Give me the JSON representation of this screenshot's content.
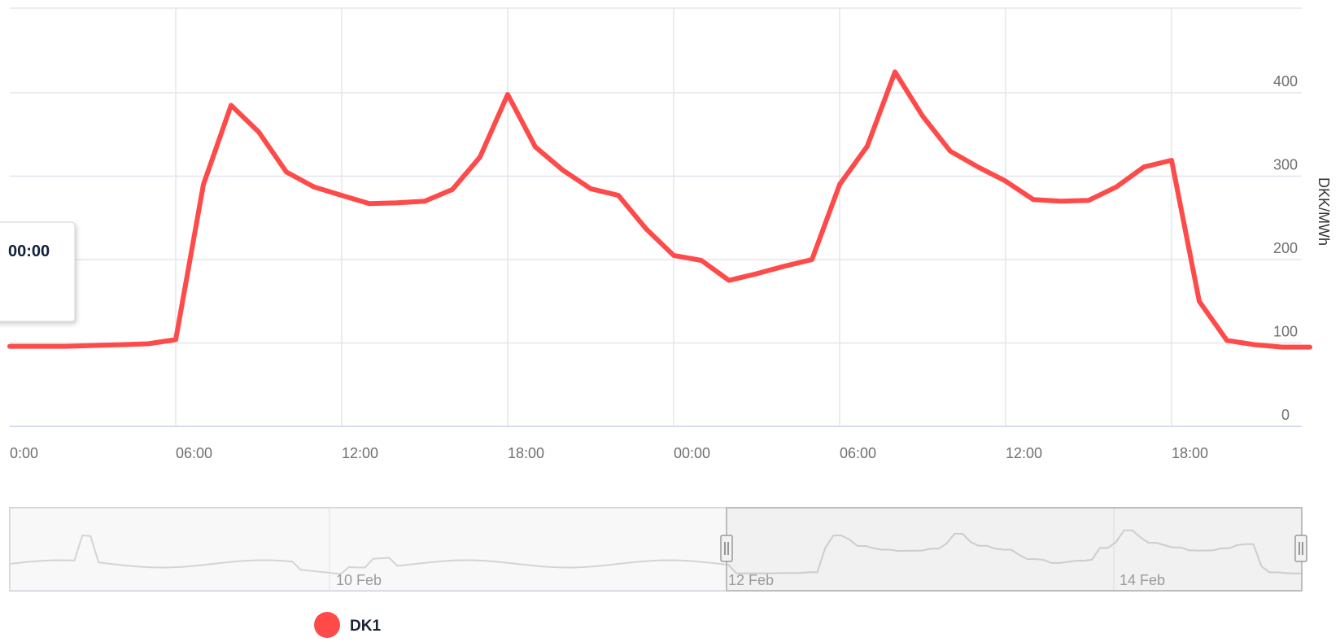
{
  "chart_data": {
    "type": "line",
    "ylabel": "DKK/MWh",
    "y_axis_position": "right",
    "ylim": [
      0,
      400
    ],
    "y_ticks": [
      "0",
      "100",
      "200",
      "300",
      "400"
    ],
    "x_tick_labels": [
      "0:00",
      "06:00",
      "12:00",
      "18:00",
      "00:00",
      "06:00",
      "12:00",
      "18:00"
    ],
    "grid": true,
    "legend_placement": "bottom",
    "series": [
      {
        "name": "DK1",
        "color": "#ff4a4a",
        "x": [
          0,
          1,
          2,
          3,
          4,
          5,
          6,
          7,
          8,
          9,
          10,
          11,
          12,
          13,
          14,
          15,
          16,
          17,
          18,
          19,
          20,
          21,
          22,
          23,
          24,
          25,
          26,
          27,
          28,
          29,
          30,
          31,
          32,
          33,
          34,
          35,
          36,
          37,
          38,
          39,
          40,
          41,
          42,
          43,
          44,
          45,
          46,
          47
        ],
        "values": [
          96,
          96,
          96,
          97,
          98,
          99,
          104,
          290,
          385,
          353,
          305,
          287,
          277,
          267,
          268,
          270,
          284,
          323,
          398,
          335,
          307,
          285,
          277,
          237,
          205,
          199,
          175,
          183,
          192,
          200,
          290,
          336,
          425,
          372,
          330,
          311,
          294,
          272,
          270,
          271,
          287,
          311,
          319,
          150,
          103,
          98,
          95,
          95
        ]
      }
    ]
  },
  "tooltip": {
    "time_text": "00:00"
  },
  "navigator": {
    "labels": [
      "10 Feb",
      "12 Feb",
      "14 Feb"
    ]
  },
  "colors": {
    "series": "#ff4a4a",
    "grid": "#e3e6ec",
    "navigator_line": "#bdbdbd",
    "navigator_mask": "#f0f0f0"
  },
  "icons": {
    "navigator_handle": "grip-handle-icon",
    "legend_symbol": "circle-marker"
  }
}
